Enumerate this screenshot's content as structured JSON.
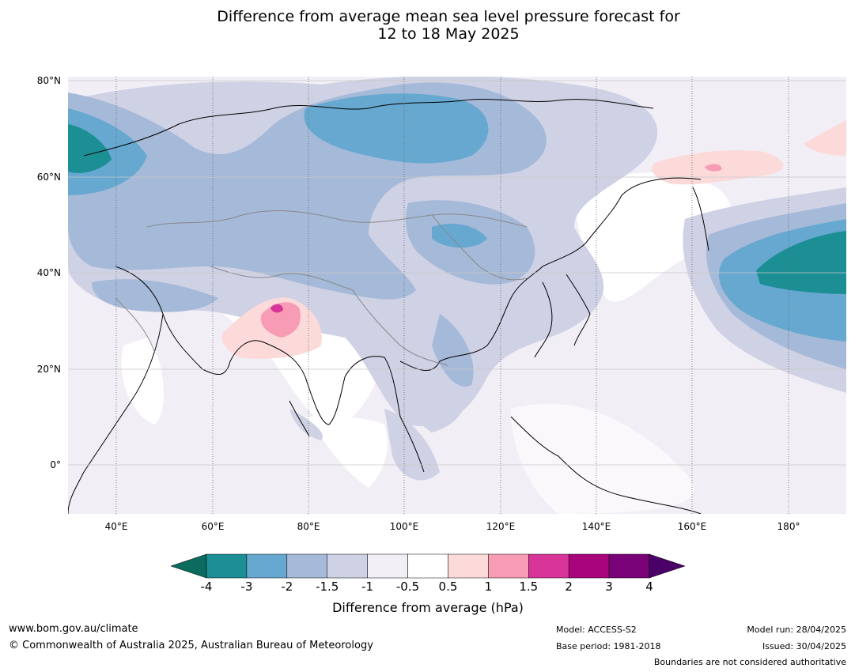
{
  "title": {
    "line1": "Difference from average mean sea level pressure forecast for",
    "line2": "12 to 18 May 2025"
  },
  "map": {
    "lat_labels": [
      "80°N",
      "60°N",
      "40°N",
      "20°N",
      "0°"
    ],
    "lon_labels": [
      "40°E",
      "60°E",
      "80°E",
      "100°E",
      "120°E",
      "140°E",
      "160°E",
      "180°"
    ]
  },
  "colorbar": {
    "ticks": [
      "-4",
      "-3",
      "-2",
      "-1.5",
      "-1",
      "-0.5",
      "0.5",
      "1",
      "1.5",
      "2",
      "3",
      "4"
    ],
    "colors": {
      "below_min": "#0b6b5f",
      "bins": [
        "#1b8f94",
        "#66a8d0",
        "#a5b9d8",
        "#cfd1e5",
        "#f2eef6",
        "#ffffff",
        "#fcdada",
        "#f79cb4",
        "#d83598",
        "#a8047c",
        "#7a0278"
      ],
      "above_max": "#4b0067"
    },
    "label": "Difference from average (hPa)"
  },
  "footer": {
    "website": "www.bom.gov.au/climate",
    "copyright": "© Commonwealth of Australia 2025, Australian Bureau of Meteorology",
    "model": "Model: ACCESS-S2",
    "base_period": "Base period: 1981-2018",
    "model_run": "Model run: 28/04/2025",
    "issued": "Issued: 30/04/2025",
    "disclaimer": "Boundaries are not considered authoritative"
  }
}
